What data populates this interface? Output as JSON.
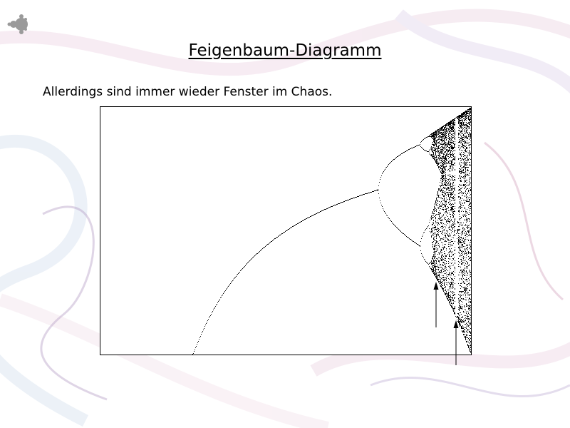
{
  "slide": {
    "title": "Feigenbaum-Diagramm",
    "subtitle": "Allerdings sind immer wieder Fenster im Chaos."
  },
  "figure": {
    "frame_color": "#000000",
    "mark_color": "#000000",
    "arrow_count": 2
  },
  "chart_data": {
    "type": "scatter",
    "title": "",
    "xlabel": "",
    "ylabel": "",
    "points_per_r": 110,
    "series": []
  },
  "theme": {
    "background": "#ffffff",
    "swirl_colors": [
      "#e8c9dc",
      "#c9d8ea",
      "#d9c9e6",
      "#f0dbe6"
    ]
  }
}
